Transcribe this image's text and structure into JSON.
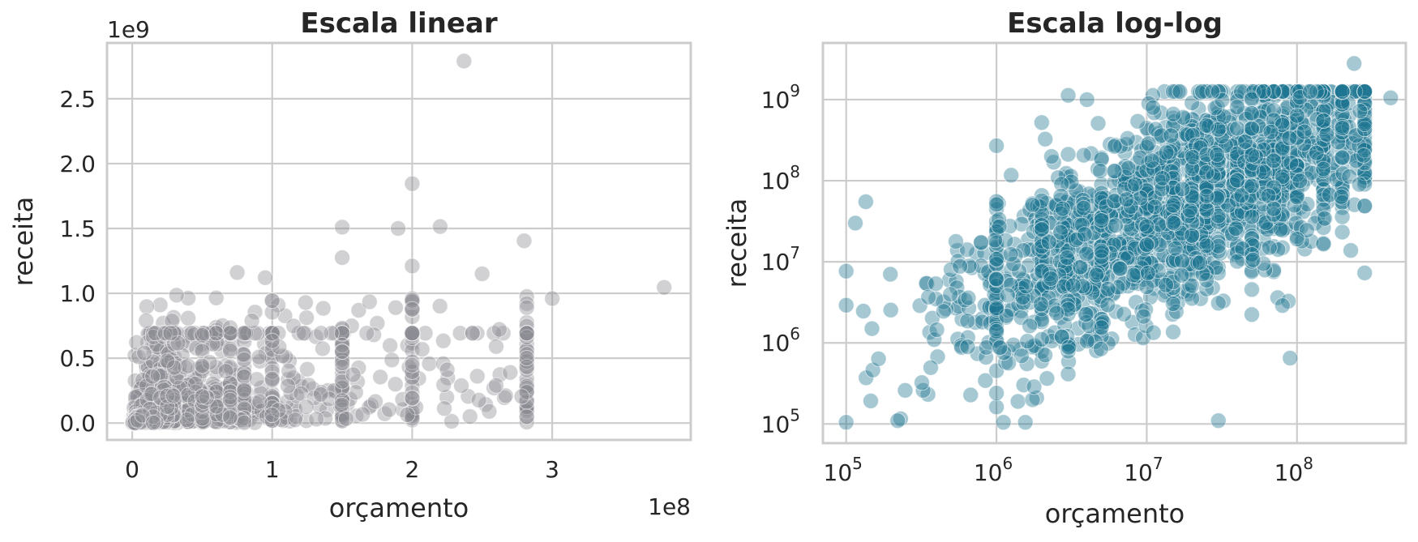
{
  "chart_data": [
    {
      "type": "scatter",
      "title": "Escala linear",
      "xlabel": "orçamento",
      "ylabel": "receita",
      "x_offset_text": "1e8",
      "y_offset_text": "1e9",
      "x_scale": "linear",
      "y_scale": "linear",
      "xlim": [
        -18000000,
        399000000
      ],
      "ylim": [
        -130000000,
        2930000000
      ],
      "x_ticks": [
        0,
        100000000,
        200000000,
        300000000
      ],
      "x_tick_labels": [
        "0",
        "1",
        "2",
        "3"
      ],
      "y_ticks": [
        0,
        500000000,
        1000000000,
        1500000000,
        2000000000,
        2500000000
      ],
      "y_tick_labels": [
        "0.0",
        "0.5",
        "1.0",
        "1.5",
        "2.0",
        "2.5"
      ],
      "grid": true,
      "marker_color": "#8c8c94",
      "marker_alpha": 0.4,
      "highlighted_points": [
        {
          "x": 237000000,
          "y": 2790000000
        },
        {
          "x": 200000000,
          "y": 1845000000
        },
        {
          "x": 150000000,
          "y": 1510000000
        },
        {
          "x": 220000000,
          "y": 1515000000
        },
        {
          "x": 190000000,
          "y": 1500000000
        },
        {
          "x": 280000000,
          "y": 1405000000
        },
        {
          "x": 150000000,
          "y": 1275000000
        },
        {
          "x": 200000000,
          "y": 1210000000
        },
        {
          "x": 250000000,
          "y": 1150000000
        },
        {
          "x": 300000000,
          "y": 960000000
        },
        {
          "x": 380000000,
          "y": 1045000000
        },
        {
          "x": 260000000,
          "y": 590000000
        },
        {
          "x": 270000000,
          "y": 390000000
        },
        {
          "x": 255000000,
          "y": 90000000
        },
        {
          "x": 260000000,
          "y": 290000000
        },
        {
          "x": 225000000,
          "y": 410000000
        },
        {
          "x": 75000000,
          "y": 1160000000
        },
        {
          "x": 95000000,
          "y": 1120000000
        },
        {
          "x": 10000000,
          "y": 790000000
        }
      ],
      "cloud": {
        "point_count": 2200,
        "x_range": [
          0,
          260000000
        ],
        "y_range": [
          0,
          1000000000
        ],
        "description_note": ""
      }
    },
    {
      "type": "scatter",
      "title": "Escala log-log",
      "xlabel": "orçamento",
      "ylabel": "receita",
      "x_scale": "log",
      "y_scale": "log",
      "xlim": [
        70000,
        530000000
      ],
      "ylim": [
        58000,
        5000000000
      ],
      "x_ticks": [
        100000,
        1000000,
        10000000,
        100000000
      ],
      "x_tick_labels": [
        {
          "base": "10",
          "exp": "5"
        },
        {
          "base": "10",
          "exp": "6"
        },
        {
          "base": "10",
          "exp": "7"
        },
        {
          "base": "10",
          "exp": "8"
        }
      ],
      "y_ticks": [
        100000,
        1000000,
        10000000,
        100000000,
        1000000000
      ],
      "y_tick_labels": [
        {
          "base": "10",
          "exp": "5"
        },
        {
          "base": "10",
          "exp": "6"
        },
        {
          "base": "10",
          "exp": "7"
        },
        {
          "base": "10",
          "exp": "8"
        },
        {
          "base": "10",
          "exp": "9"
        }
      ],
      "grid": true,
      "marker_color": "#1f7591",
      "marker_alpha": 0.4,
      "highlighted_points": [
        {
          "x": 115000,
          "y": 30000000
        },
        {
          "x": 135000,
          "y": 55000000
        },
        {
          "x": 220000,
          "y": 110000
        },
        {
          "x": 1000000,
          "y": 270000000
        },
        {
          "x": 11000000,
          "y": 800000000
        },
        {
          "x": 4000000,
          "y": 1000000000
        },
        {
          "x": 240000000,
          "y": 2790000000
        },
        {
          "x": 420000000,
          "y": 1050000000
        },
        {
          "x": 260000000,
          "y": 90000000
        },
        {
          "x": 90000000,
          "y": 650000
        },
        {
          "x": 30000000,
          "y": 110000
        },
        {
          "x": 4000000,
          "y": 1050000
        }
      ],
      "cloud": {
        "point_count": 2200,
        "x_range": [
          100000,
          400000000
        ],
        "y_range": [
          100000,
          3000000000
        ],
        "description_note": ""
      }
    }
  ]
}
